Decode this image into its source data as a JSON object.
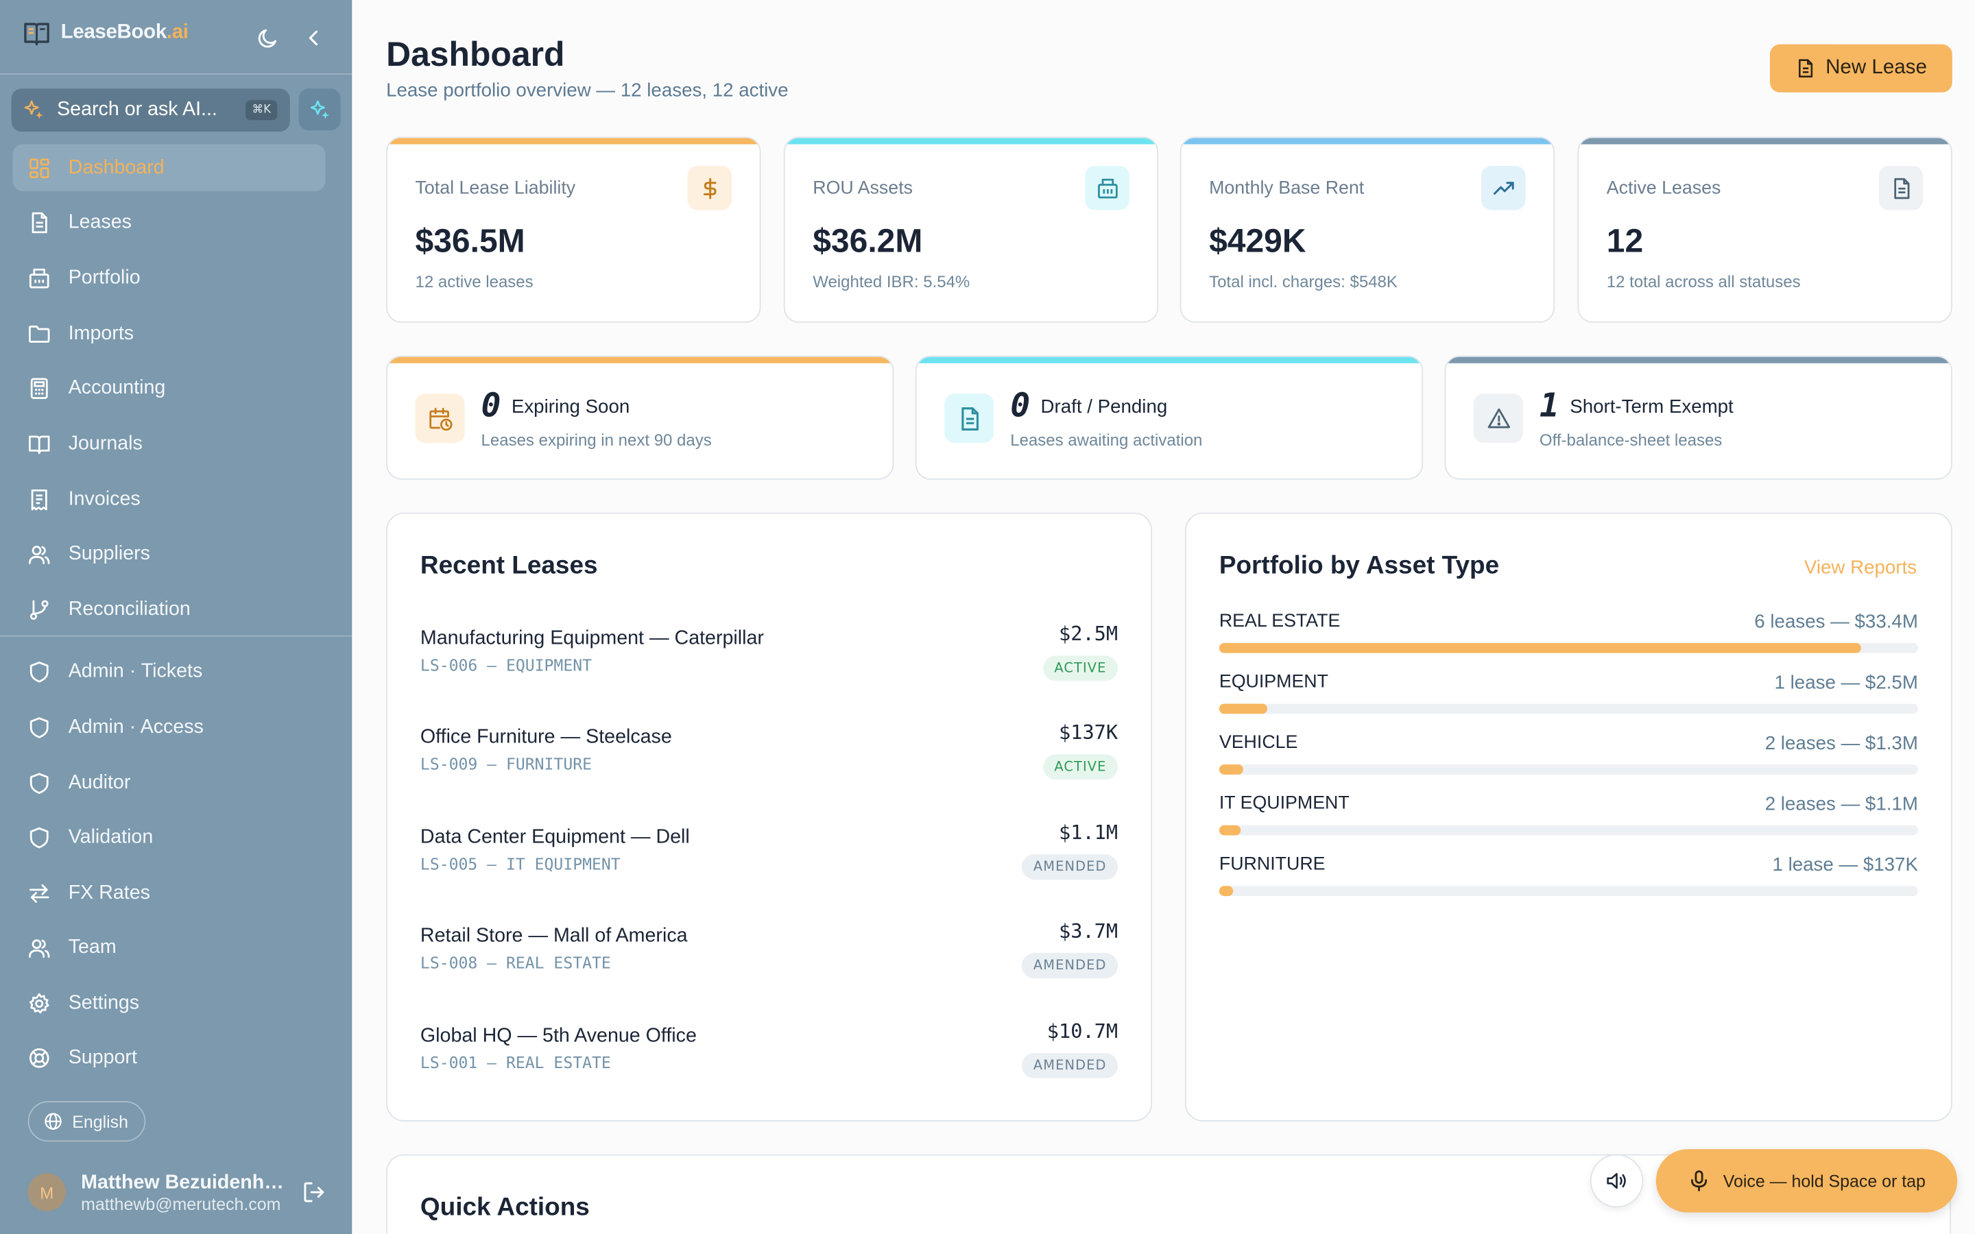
{
  "app": {
    "brand_main": "LeaseBook",
    "brand_ai": ".ai"
  },
  "sidebar": {
    "search_label": "Search or ask AI...",
    "search_shortcut": "⌘K",
    "items": [
      {
        "label": "Dashboard",
        "icon": "dashboard-icon",
        "active": true
      },
      {
        "label": "Leases",
        "icon": "file-icon"
      },
      {
        "label": "Portfolio",
        "icon": "building-icon"
      },
      {
        "label": "Imports",
        "icon": "folder-icon"
      },
      {
        "label": "Accounting",
        "icon": "calculator-icon"
      },
      {
        "label": "Journals",
        "icon": "book-icon"
      },
      {
        "label": "Invoices",
        "icon": "receipt-icon"
      },
      {
        "label": "Suppliers",
        "icon": "users-icon"
      },
      {
        "label": "Reconciliation",
        "icon": "git-branch-icon"
      },
      {
        "label": "Admin · Tickets",
        "icon": "shield-icon"
      },
      {
        "label": "Admin · Access",
        "icon": "shield-icon"
      },
      {
        "label": "Auditor",
        "icon": "shield-icon"
      },
      {
        "label": "Validation",
        "icon": "shield-icon"
      },
      {
        "label": "FX Rates",
        "icon": "arrows-icon"
      },
      {
        "label": "Team",
        "icon": "users-icon"
      },
      {
        "label": "Settings",
        "icon": "gear-icon"
      },
      {
        "label": "Support",
        "icon": "lifebuoy-icon"
      }
    ],
    "language": "English",
    "user": {
      "initial": "M",
      "name": "Matthew Bezuidenhout",
      "email": "matthewb@merutech.com"
    }
  },
  "header": {
    "title": "Dashboard",
    "subtitle": "Lease portfolio overview — 12 leases, 12 active",
    "new_lease_label": "New Lease"
  },
  "stats": [
    {
      "label": "Total Lease Liability",
      "value": "$36.5M",
      "note": "12 active leases",
      "color": "#f7b760",
      "icon": "dollar-icon"
    },
    {
      "label": "ROU Assets",
      "value": "$36.2M",
      "note": "Weighted IBR: 5.54%",
      "color": "#6ee3f0",
      "icon": "building-icon"
    },
    {
      "label": "Monthly Base Rent",
      "value": "$429K",
      "note": "Total incl. charges: $548K",
      "color": "#7cc4ef",
      "icon": "trending-up-icon"
    },
    {
      "label": "Active Leases",
      "value": "12",
      "note": "12 total across all statuses",
      "color": "#7c99ad",
      "icon": "file-icon"
    }
  ],
  "mini_stats": [
    {
      "count": "0",
      "title": "Expiring Soon",
      "sub": "Leases expiring in next 90 days",
      "color": "#f7b760",
      "icon": "calendar-clock-icon"
    },
    {
      "count": "0",
      "title": "Draft / Pending",
      "sub": "Leases awaiting activation",
      "color": "#6ee3f0",
      "icon": "file-icon"
    },
    {
      "count": "1",
      "title": "Short-Term Exempt",
      "sub": "Off-balance-sheet leases",
      "color": "#7c99ad",
      "icon": "warning-icon"
    }
  ],
  "recent_leases": {
    "title": "Recent Leases",
    "rows": [
      {
        "name": "Manufacturing Equipment — Caterpillar",
        "code": "LS-006 — EQUIPMENT",
        "amount": "$2.5M",
        "status": "ACTIVE"
      },
      {
        "name": "Office Furniture — Steelcase",
        "code": "LS-009 — FURNITURE",
        "amount": "$137K",
        "status": "ACTIVE"
      },
      {
        "name": "Data Center Equipment — Dell",
        "code": "LS-005 — IT EQUIPMENT",
        "amount": "$1.1M",
        "status": "AMENDED"
      },
      {
        "name": "Retail Store — Mall of America",
        "code": "LS-008 — REAL ESTATE",
        "amount": "$3.7M",
        "status": "AMENDED"
      },
      {
        "name": "Global HQ — 5th Avenue Office",
        "code": "LS-001 — REAL ESTATE",
        "amount": "$10.7M",
        "status": "AMENDED"
      }
    ]
  },
  "portfolio": {
    "title": "Portfolio by Asset Type",
    "view_reports": "View Reports",
    "rows": [
      {
        "name": "REAL ESTATE",
        "value": "6 leases — $33.4M",
        "share": 0.918
      },
      {
        "name": "EQUIPMENT",
        "value": "1 lease — $2.5M",
        "share": 0.069
      },
      {
        "name": "VEHICLE",
        "value": "2 leases — $1.3M",
        "share": 0.034
      },
      {
        "name": "IT EQUIPMENT",
        "value": "2 leases — $1.1M",
        "share": 0.031
      },
      {
        "name": "FURNITURE",
        "value": "1 lease — $137K",
        "share": 0.02
      }
    ]
  },
  "quick_actions": {
    "title": "Quick Actions"
  },
  "voice": {
    "label": "Voice — hold Space or tap"
  }
}
